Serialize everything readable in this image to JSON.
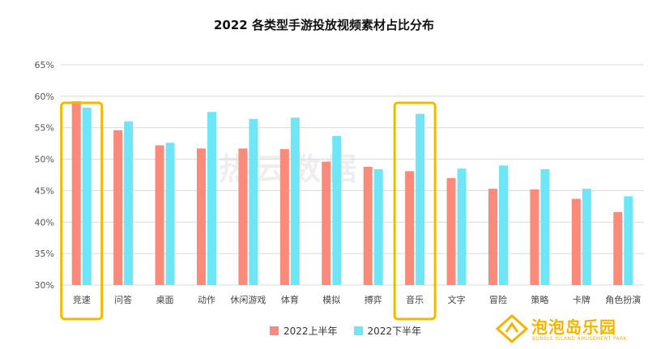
{
  "chart_data": {
    "type": "bar",
    "title": "2022 各类型手游投放视频素材占比分布",
    "categories": [
      "竞速",
      "问答",
      "桌面",
      "动作",
      "休闲游戏",
      "体育",
      "模拟",
      "搏弈",
      "音乐",
      "文字",
      "冒险",
      "策略",
      "卡牌",
      "角色扮演"
    ],
    "series": [
      {
        "name": "2022上半年",
        "color": "#fa8a7a",
        "values": [
          59.2,
          54.6,
          52.2,
          51.7,
          51.7,
          51.6,
          49.6,
          48.8,
          48.1,
          47.0,
          45.3,
          45.2,
          43.7,
          41.6
        ]
      },
      {
        "name": "2022下半年",
        "color": "#6ee6f5",
        "values": [
          58.2,
          56.0,
          52.6,
          57.5,
          56.4,
          56.6,
          53.7,
          48.4,
          57.2,
          48.5,
          49.0,
          48.4,
          45.3,
          44.1
        ]
      }
    ],
    "yticks": [
      "30%",
      "35%",
      "40%",
      "45%",
      "50%",
      "55%",
      "60%",
      "65%"
    ],
    "ylim": [
      30,
      65
    ],
    "grid": true,
    "highlighted_categories": [
      "竞速",
      "音乐"
    ],
    "highlight_color": "#f5b800",
    "axis_color": "#d9d9d9",
    "legend_position": "bottom"
  },
  "watermark": "热云数据",
  "logo": {
    "name_cn": "泡泡岛乐园",
    "name_en": "BUBBLE ISLAND AMUSEMENT PARK",
    "color": "#f2b400"
  }
}
